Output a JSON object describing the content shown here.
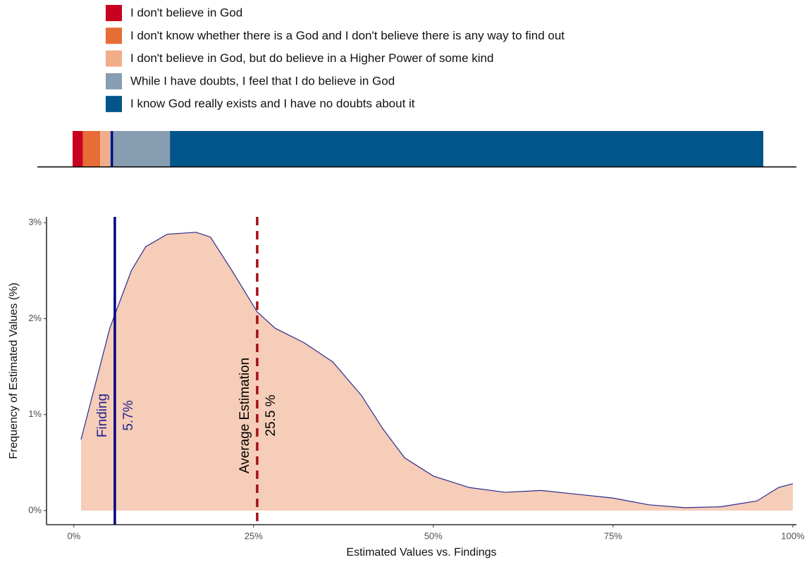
{
  "chart_data": [
    {
      "type": "stacked_bar",
      "series": [
        {
          "name": "I don't believe in God",
          "color": "#ca0020",
          "values": [
            1.5
          ]
        },
        {
          "name": "I don't know whether there is a God and I don't believe there is any way to find out",
          "color": "#e66d35",
          "values": [
            2.5
          ]
        },
        {
          "name": "I don't believe in God, but do believe in a Higher Power of some kind",
          "color": "#f1ad8a",
          "values": [
            1.4
          ]
        },
        {
          "name": "While I have doubts, I feel that I do believe in God",
          "color": "#879db1",
          "values": [
            8.7
          ]
        },
        {
          "name": "I know God really exists and I have no doubts about it",
          "color": "#01558b",
          "values": [
            85.9
          ]
        }
      ],
      "xlim": [
        0,
        100
      ]
    },
    {
      "type": "area",
      "xlabel": "Estimated Values vs. Findings",
      "ylabel": "Frequency of Estimated Values (%)",
      "color": "#f5cdb8",
      "line_color": "#2b2b8c",
      "x": [
        1,
        5,
        8,
        10,
        13,
        17,
        19,
        22,
        25.5,
        28,
        32,
        36,
        40,
        43,
        46,
        50,
        55,
        60,
        65,
        70,
        75,
        80,
        85,
        90,
        95,
        98,
        100
      ],
      "values": [
        0.74,
        1.9,
        2.5,
        2.75,
        2.88,
        2.9,
        2.85,
        2.5,
        2.07,
        1.9,
        1.75,
        1.55,
        1.2,
        0.85,
        0.55,
        0.36,
        0.24,
        0.19,
        0.21,
        0.17,
        0.13,
        0.06,
        0.03,
        0.04,
        0.1,
        0.24,
        0.28
      ],
      "xlim": [
        -3.8,
        100.5
      ],
      "ylim": [
        -0.147,
        3.06
      ],
      "xticks": [
        {
          "value": 0,
          "label": "0%"
        },
        {
          "value": 25,
          "label": "25%"
        },
        {
          "value": 50,
          "label": "50%"
        },
        {
          "value": 75,
          "label": "75%"
        },
        {
          "value": 100,
          "label": "100%"
        }
      ],
      "yticks": [
        {
          "value": 0,
          "label": "0%"
        },
        {
          "value": 1,
          "label": "1%"
        },
        {
          "value": 2,
          "label": "2%"
        },
        {
          "value": 3,
          "label": "3%"
        }
      ],
      "vlines": [
        {
          "x": 5.7,
          "label": "Finding",
          "value_label": "5.7%",
          "color": "#000080",
          "style": "solid"
        },
        {
          "x": 25.5,
          "label": "Average Estimation",
          "value_label": "25.5 %",
          "color": "#a50f15",
          "style": "dashed"
        }
      ]
    }
  ]
}
